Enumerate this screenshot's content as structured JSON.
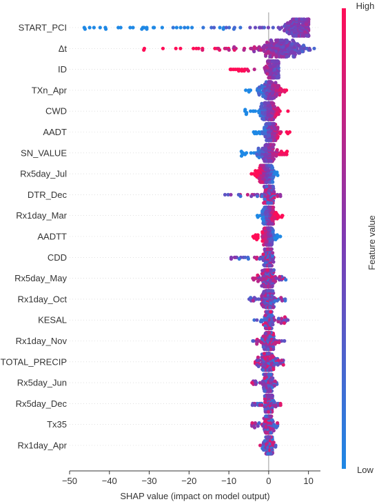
{
  "chart_data": {
    "type": "scatter",
    "subtype": "shap-beeswarm",
    "xlabel": "SHAP value (impact on model output)",
    "x_ticks": [
      -50,
      -40,
      -30,
      -20,
      -10,
      0,
      10
    ],
    "xlim": [
      -50,
      13
    ],
    "colorbar": {
      "label": "Feature value",
      "high": "High",
      "low": "Low"
    },
    "colors": {
      "low": "#1e88e5",
      "mid": "#7e3ab3",
      "high": "#ff0d57",
      "zero_line": "#999999",
      "grid": "#cccccc",
      "axis": "#333333"
    },
    "features": [
      {
        "name": "START_PCI",
        "min": -47,
        "max": 10,
        "center": 8,
        "spread": 3,
        "trend": "pos"
      },
      {
        "name": "Δt",
        "min": -32,
        "max": 12,
        "center": 3,
        "spread": 5,
        "trend": "neg"
      },
      {
        "name": "ID",
        "min": -10,
        "max": 2.5,
        "center": 1,
        "spread": 1.5,
        "trend": "neg"
      },
      {
        "name": "TXn_Apr",
        "min": -6,
        "max": 4.5,
        "center": 0.5,
        "spread": 2,
        "trend": "pos"
      },
      {
        "name": "CWD",
        "min": -6,
        "max": 5,
        "center": 0,
        "spread": 1.8,
        "trend": "pos"
      },
      {
        "name": "AADT",
        "min": -4,
        "max": 5.5,
        "center": 0.5,
        "spread": 1.5,
        "trend": "pos"
      },
      {
        "name": "SN_VALUE",
        "min": -7,
        "max": 5,
        "center": 0,
        "spread": 1.8,
        "trend": "pos"
      },
      {
        "name": "Rx5day_Jul",
        "min": -4.5,
        "max": 2.5,
        "center": -0.5,
        "spread": 1.8,
        "trend": "neg"
      },
      {
        "name": "DTR_Dec",
        "min": -11,
        "max": 3,
        "center": 0,
        "spread": 1.2,
        "trend": "mixed"
      },
      {
        "name": "Rx1day_Mar",
        "min": -3,
        "max": 3.5,
        "center": 0,
        "spread": 1.3,
        "trend": "pos"
      },
      {
        "name": "AADTT",
        "min": -4,
        "max": 3,
        "center": 0,
        "spread": 1.3,
        "trend": "neg"
      },
      {
        "name": "CDD",
        "min": -9.5,
        "max": 1.5,
        "center": 0,
        "spread": 1.0,
        "trend": "mixed"
      },
      {
        "name": "Rx5day_May",
        "min": -4,
        "max": 4.5,
        "center": 0,
        "spread": 1.3,
        "trend": "mixed"
      },
      {
        "name": "Rx1day_Oct",
        "min": -5,
        "max": 4.5,
        "center": 0,
        "spread": 1.2,
        "trend": "mixed"
      },
      {
        "name": "KESAL",
        "min": -4,
        "max": 5,
        "center": 0,
        "spread": 1.0,
        "trend": "mixed"
      },
      {
        "name": "Rx1day_Nov",
        "min": -4,
        "max": 4,
        "center": 0,
        "spread": 1.2,
        "trend": "mixed"
      },
      {
        "name": "TOTAL_PRECIP",
        "min": -3.5,
        "max": 4,
        "center": 0,
        "spread": 1.1,
        "trend": "mixed"
      },
      {
        "name": "Rx5day_Jun",
        "min": -4.5,
        "max": 2.5,
        "center": 0,
        "spread": 1.0,
        "trend": "mixed"
      },
      {
        "name": "Rx5day_Dec",
        "min": -4.5,
        "max": 3,
        "center": 0,
        "spread": 1.0,
        "trend": "mixed"
      },
      {
        "name": "Tx35",
        "min": -4.5,
        "max": 2.5,
        "center": 0,
        "spread": 0.9,
        "trend": "mixed"
      },
      {
        "name": "Rx1day_Apr",
        "min": -2.5,
        "max": 2,
        "center": 0,
        "spread": 0.9,
        "trend": "mixed"
      }
    ]
  }
}
